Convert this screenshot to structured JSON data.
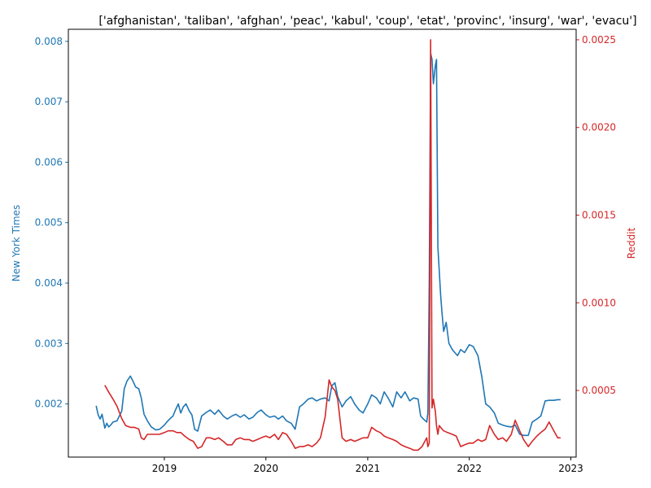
{
  "chart_data": {
    "type": "line",
    "title": "['afghanistan', 'taliban', 'afghan', 'peac', 'kabul', 'coup', 'etat', 'provinc', 'insurg', 'war', 'evacu']",
    "xlabel": "",
    "x_ticks": [
      "2019",
      "2020",
      "2021",
      "2022",
      "2023"
    ],
    "xlim": [
      "2018-01-21",
      "2023-01-20"
    ],
    "grid": false,
    "legend": "none",
    "axes": {
      "left": {
        "label": "New York Times",
        "color": "#1f77b4",
        "ylim": [
          0.00112,
          0.0082
        ],
        "ticks": [
          "0.002",
          "0.003",
          "0.004",
          "0.005",
          "0.006",
          "0.007",
          "0.008"
        ]
      },
      "right": {
        "label": "Reddit",
        "color": "#d62728",
        "ylim": [
          0.00012,
          0.00256
        ],
        "ticks": [
          "0.0005",
          "0.0010",
          "0.0015",
          "0.0020",
          "0.0025"
        ]
      }
    },
    "series": [
      {
        "name": "New York Times",
        "axis": "left",
        "color": "#1f77b4",
        "x": [
          "2018-05-01",
          "2018-05-08",
          "2018-05-15",
          "2018-05-22",
          "2018-06-01",
          "2018-06-08",
          "2018-06-15",
          "2018-06-22",
          "2018-07-01",
          "2018-07-15",
          "2018-08-01",
          "2018-08-10",
          "2018-08-20",
          "2018-09-01",
          "2018-09-10",
          "2018-09-20",
          "2018-10-01",
          "2018-10-10",
          "2018-10-20",
          "2018-11-01",
          "2018-11-15",
          "2018-12-01",
          "2018-12-15",
          "2019-01-01",
          "2019-01-10",
          "2019-01-20",
          "2019-02-01",
          "2019-02-10",
          "2019-02-20",
          "2019-03-01",
          "2019-03-10",
          "2019-03-20",
          "2019-04-01",
          "2019-04-10",
          "2019-04-20",
          "2019-05-01",
          "2019-05-15",
          "2019-06-01",
          "2019-06-15",
          "2019-07-01",
          "2019-07-15",
          "2019-08-01",
          "2019-08-15",
          "2019-09-01",
          "2019-09-15",
          "2019-10-01",
          "2019-10-15",
          "2019-11-01",
          "2019-11-15",
          "2019-12-01",
          "2019-12-15",
          "2020-01-01",
          "2020-01-15",
          "2020-02-01",
          "2020-02-15",
          "2020-03-01",
          "2020-03-15",
          "2020-04-01",
          "2020-04-15",
          "2020-05-01",
          "2020-05-15",
          "2020-06-01",
          "2020-06-15",
          "2020-07-01",
          "2020-07-15",
          "2020-08-01",
          "2020-08-15",
          "2020-08-25",
          "2020-09-05",
          "2020-09-15",
          "2020-10-01",
          "2020-10-15",
          "2020-11-01",
          "2020-11-15",
          "2020-12-01",
          "2020-12-15",
          "2021-01-01",
          "2021-01-15",
          "2021-02-01",
          "2021-02-15",
          "2021-03-01",
          "2021-03-15",
          "2021-04-01",
          "2021-04-15",
          "2021-05-01",
          "2021-05-15",
          "2021-06-01",
          "2021-06-15",
          "2021-07-01",
          "2021-07-10",
          "2021-07-20",
          "2021-08-01",
          "2021-08-05",
          "2021-08-10",
          "2021-08-15",
          "2021-08-20",
          "2021-08-25",
          "2021-09-01",
          "2021-09-05",
          "2021-09-10",
          "2021-09-15",
          "2021-09-20",
          "2021-09-25",
          "2021-10-01",
          "2021-10-10",
          "2021-10-20",
          "2021-11-01",
          "2021-11-10",
          "2021-11-20",
          "2021-12-01",
          "2021-12-15",
          "2022-01-01",
          "2022-01-15",
          "2022-02-01",
          "2022-02-15",
          "2022-03-01",
          "2022-03-15",
          "2022-04-01",
          "2022-04-15",
          "2022-05-01",
          "2022-05-15",
          "2022-06-01",
          "2022-06-15",
          "2022-07-01",
          "2022-07-15",
          "2022-08-01",
          "2022-08-15",
          "2022-09-01",
          "2022-09-15",
          "2022-10-01",
          "2022-10-15",
          "2022-11-01",
          "2022-11-15",
          "2022-11-25"
        ],
        "y": [
          0.00197,
          0.00182,
          0.00175,
          0.00183,
          0.0016,
          0.00168,
          0.00162,
          0.00165,
          0.0017,
          0.00172,
          0.00188,
          0.00225,
          0.00238,
          0.00246,
          0.00238,
          0.00228,
          0.00225,
          0.0021,
          0.00183,
          0.00172,
          0.00162,
          0.00157,
          0.00158,
          0.00165,
          0.0017,
          0.00175,
          0.0018,
          0.0019,
          0.002,
          0.00185,
          0.00195,
          0.002,
          0.00188,
          0.00182,
          0.00158,
          0.00155,
          0.0018,
          0.00186,
          0.0019,
          0.00183,
          0.0019,
          0.0018,
          0.00175,
          0.0018,
          0.00183,
          0.00178,
          0.00182,
          0.00175,
          0.00178,
          0.00186,
          0.0019,
          0.00182,
          0.00178,
          0.0018,
          0.00175,
          0.0018,
          0.00172,
          0.00168,
          0.00158,
          0.00195,
          0.002,
          0.00208,
          0.0021,
          0.00205,
          0.00208,
          0.0021,
          0.00205,
          0.0023,
          0.00235,
          0.00212,
          0.00195,
          0.00205,
          0.00212,
          0.002,
          0.0019,
          0.00185,
          0.002,
          0.00215,
          0.0021,
          0.002,
          0.0022,
          0.0021,
          0.00195,
          0.0022,
          0.0021,
          0.0022,
          0.00205,
          0.0021,
          0.00208,
          0.0018,
          0.00175,
          0.0017,
          0.00185,
          0.004,
          0.0078,
          0.0077,
          0.0073,
          0.0076,
          0.0077,
          0.0046,
          0.0042,
          0.0038,
          0.0035,
          0.0032,
          0.00335,
          0.003,
          0.0029,
          0.00285,
          0.0028,
          0.0029,
          0.00285,
          0.00298,
          0.00295,
          0.0028,
          0.00245,
          0.002,
          0.00195,
          0.00185,
          0.00168,
          0.00165,
          0.00163,
          0.00162,
          0.00165,
          0.0015,
          0.00148,
          0.00148,
          0.0017,
          0.00175,
          0.0018,
          0.00205,
          0.00206,
          0.00206,
          0.00207,
          0.00207
        ]
      },
      {
        "name": "Reddit",
        "axis": "right",
        "color": "#d62728",
        "x": [
          "2018-06-01",
          "2018-06-15",
          "2018-07-01",
          "2018-07-15",
          "2018-08-01",
          "2018-08-15",
          "2018-09-01",
          "2018-09-15",
          "2018-10-01",
          "2018-10-10",
          "2018-10-20",
          "2018-11-01",
          "2018-11-15",
          "2018-12-01",
          "2018-12-15",
          "2019-01-01",
          "2019-01-15",
          "2019-02-01",
          "2019-02-15",
          "2019-03-01",
          "2019-03-15",
          "2019-04-01",
          "2019-04-15",
          "2019-05-01",
          "2019-05-15",
          "2019-06-01",
          "2019-06-15",
          "2019-07-01",
          "2019-07-15",
          "2019-08-01",
          "2019-08-15",
          "2019-09-01",
          "2019-09-15",
          "2019-10-01",
          "2019-10-15",
          "2019-11-01",
          "2019-11-15",
          "2019-12-01",
          "2019-12-15",
          "2020-01-01",
          "2020-01-15",
          "2020-02-01",
          "2020-02-15",
          "2020-03-01",
          "2020-03-15",
          "2020-04-01",
          "2020-04-15",
          "2020-05-01",
          "2020-05-15",
          "2020-06-01",
          "2020-06-15",
          "2020-07-01",
          "2020-07-15",
          "2020-08-01",
          "2020-08-15",
          "2020-08-25",
          "2020-09-05",
          "2020-09-15",
          "2020-10-01",
          "2020-10-15",
          "2020-11-01",
          "2020-11-15",
          "2020-12-01",
          "2020-12-15",
          "2021-01-01",
          "2021-01-15",
          "2021-02-01",
          "2021-02-15",
          "2021-03-01",
          "2021-03-15",
          "2021-04-01",
          "2021-04-15",
          "2021-05-01",
          "2021-05-15",
          "2021-06-01",
          "2021-06-15",
          "2021-07-01",
          "2021-07-15",
          "2021-08-01",
          "2021-08-05",
          "2021-08-10",
          "2021-08-15",
          "2021-08-20",
          "2021-08-25",
          "2021-09-01",
          "2021-09-05",
          "2021-09-10",
          "2021-09-15",
          "2021-09-25",
          "2021-10-01",
          "2021-10-15",
          "2021-11-01",
          "2021-11-15",
          "2021-12-01",
          "2021-12-15",
          "2022-01-01",
          "2022-01-15",
          "2022-02-01",
          "2022-02-15",
          "2022-03-01",
          "2022-03-15",
          "2022-04-01",
          "2022-04-15",
          "2022-05-01",
          "2022-05-15",
          "2022-06-01",
          "2022-06-15",
          "2022-07-01",
          "2022-07-15",
          "2022-08-01",
          "2022-08-15",
          "2022-09-01",
          "2022-09-15",
          "2022-10-01",
          "2022-10-15",
          "2022-11-01",
          "2022-11-15",
          "2022-11-25"
        ],
        "y": [
          0.00053,
          0.00049,
          0.00045,
          0.00041,
          0.00034,
          0.0003,
          0.00029,
          0.00029,
          0.00028,
          0.00023,
          0.00022,
          0.00025,
          0.00025,
          0.00025,
          0.00025,
          0.00026,
          0.00027,
          0.00027,
          0.00026,
          0.00026,
          0.00024,
          0.00022,
          0.00021,
          0.00017,
          0.00018,
          0.00023,
          0.00023,
          0.00022,
          0.00023,
          0.00021,
          0.00019,
          0.00019,
          0.00022,
          0.00023,
          0.00022,
          0.00022,
          0.00021,
          0.00022,
          0.00023,
          0.00024,
          0.00023,
          0.00025,
          0.00022,
          0.00026,
          0.00025,
          0.00021,
          0.00017,
          0.00018,
          0.00018,
          0.00019,
          0.00018,
          0.0002,
          0.00023,
          0.00035,
          0.00056,
          0.00052,
          0.0005,
          0.00045,
          0.00023,
          0.00021,
          0.00022,
          0.00021,
          0.00022,
          0.00023,
          0.00023,
          0.00029,
          0.00027,
          0.00026,
          0.00024,
          0.00023,
          0.00022,
          0.00021,
          0.00019,
          0.00018,
          0.00017,
          0.00016,
          0.00016,
          0.00018,
          0.00023,
          0.00018,
          0.0002,
          0.0025,
          0.0004,
          0.00045,
          0.00038,
          0.0003,
          0.00025,
          0.0003,
          0.00028,
          0.00027,
          0.00026,
          0.00025,
          0.00024,
          0.00018,
          0.00019,
          0.0002,
          0.0002,
          0.00022,
          0.00021,
          0.00022,
          0.0003,
          0.00025,
          0.00022,
          0.00023,
          0.00021,
          0.00025,
          0.00033,
          0.00027,
          0.00022,
          0.00018,
          0.00021,
          0.00024,
          0.00026,
          0.00028,
          0.00032,
          0.00027,
          0.00023,
          0.00023
        ]
      }
    ]
  }
}
